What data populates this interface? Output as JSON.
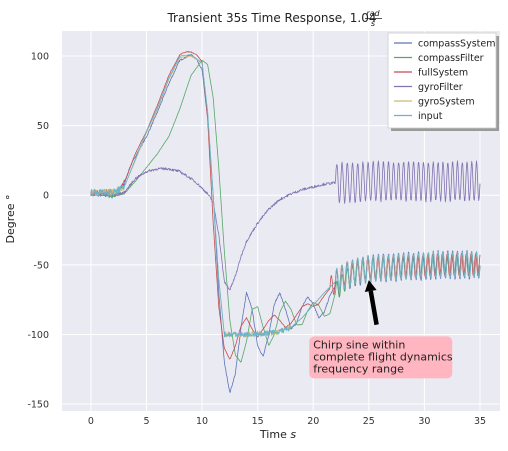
{
  "chart_data": {
    "type": "line",
    "title": "Transient 35s Time Response, 1.04 rad/s",
    "title_text": "Transient 35s Time Response, 1.04 ",
    "title_frac_num": "rad",
    "title_frac_den": "s",
    "xlabel_text": "Time ",
    "xlabel_unit": "s",
    "ylabel": "Degree °",
    "xlim": [
      -2.6,
      36.8
    ],
    "ylim": [
      -155,
      118
    ],
    "xticks": [
      0,
      5,
      10,
      15,
      20,
      25,
      30,
      35
    ],
    "yticks": [
      -150,
      -100,
      -50,
      0,
      50,
      100
    ],
    "grid": true,
    "legend_position": "top-right",
    "series": [
      {
        "name": "compassSystem",
        "color": "#5f73b8",
        "x": [
          0,
          1,
          2,
          2.5,
          3,
          3.5,
          4,
          5,
          6,
          7,
          8,
          9,
          9.5,
          10,
          10.5,
          11,
          11.5,
          12,
          12.5,
          13,
          13.5,
          14,
          14.5,
          15,
          15.5,
          16,
          16.5,
          17,
          17.5,
          18,
          18.5,
          19,
          19.5,
          20,
          20.5,
          21,
          21.5,
          22,
          23,
          24,
          25,
          26,
          27,
          28,
          29,
          30,
          31,
          32,
          33,
          34,
          35
        ],
        "y": [
          2,
          1,
          0,
          2,
          8,
          20,
          28,
          42,
          60,
          80,
          97,
          101,
          98,
          90,
          55,
          0,
          -70,
          -120,
          -142,
          -128,
          -95,
          -70,
          -82,
          -108,
          -116,
          -100,
          -78,
          -70,
          -82,
          -96,
          -92,
          -80,
          -73,
          -78,
          -88,
          -84,
          -72,
          -65,
          -58,
          -55,
          -53,
          -52,
          -52,
          -51,
          -51,
          -51,
          -50,
          -50,
          -50,
          -50,
          -50
        ]
      },
      {
        "name": "compassFilter",
        "color": "#55a868",
        "x": [
          0,
          1,
          2,
          3,
          4,
          5,
          6,
          7,
          8,
          9,
          10,
          10.5,
          11,
          11.5,
          12,
          12.5,
          13,
          13.5,
          14,
          14.5,
          15,
          15.5,
          16,
          16.5,
          17,
          17.5,
          18,
          18.5,
          19,
          19.5,
          20,
          20.5,
          21,
          21.5,
          22,
          23,
          24,
          25,
          26,
          27,
          28,
          29,
          30,
          31,
          32,
          33,
          34,
          35
        ],
        "y": [
          0,
          0,
          -1,
          1,
          10,
          20,
          30,
          42,
          62,
          86,
          97,
          94,
          70,
          20,
          -40,
          -90,
          -115,
          -120,
          -105,
          -82,
          -80,
          -95,
          -108,
          -100,
          -84,
          -76,
          -82,
          -93,
          -93,
          -83,
          -77,
          -79,
          -87,
          -85,
          -70,
          -60,
          -56,
          -53,
          -52,
          -52,
          -51,
          -51,
          -51,
          -50,
          -50,
          -50,
          -50,
          -50
        ]
      },
      {
        "name": "fullSystem",
        "color": "#c44e52",
        "x": [
          0,
          1,
          2,
          2.5,
          3,
          4,
          5,
          6,
          7,
          8,
          8.5,
          9,
          9.5,
          10,
          10.5,
          11,
          11.5,
          12,
          12.5,
          13,
          13.5,
          14,
          14.5,
          15,
          15.5,
          16,
          16.5,
          17,
          17.5,
          18,
          18.5,
          19,
          19.5,
          20,
          20.5,
          21,
          22,
          23,
          24,
          25,
          26,
          27,
          28,
          29,
          30,
          31,
          32,
          33,
          34,
          35
        ],
        "y": [
          2,
          2,
          2,
          3,
          9,
          30,
          46,
          65,
          86,
          101,
          103,
          103,
          101,
          96,
          55,
          -20,
          -80,
          -110,
          -118,
          -108,
          -94,
          -88,
          -96,
          -102,
          -96,
          -90,
          -86,
          -90,
          -95,
          -92,
          -86,
          -80,
          -78,
          -80,
          -78,
          -72,
          -62,
          -56,
          -54,
          -53,
          -52,
          -52,
          -51,
          -51,
          -51,
          -50,
          -50,
          -50,
          -50,
          -50
        ]
      },
      {
        "name": "gyroFilter",
        "color": "#8172b2",
        "x": [
          0,
          1,
          2,
          3,
          4,
          5,
          6,
          7,
          8,
          9,
          9.5,
          10,
          10.5,
          11,
          11.5,
          12,
          12.5,
          13,
          13.5,
          14,
          15,
          16,
          17,
          18,
          19,
          20,
          21,
          22,
          23,
          24,
          25,
          26,
          27,
          28,
          29,
          30,
          31,
          32,
          33,
          34,
          35
        ],
        "y": [
          2,
          1,
          0,
          2,
          12,
          17,
          19,
          19,
          17,
          12,
          9,
          5,
          1,
          -5,
          -28,
          -62,
          -68,
          -58,
          -44,
          -33,
          -20,
          -10,
          -3,
          1,
          4,
          6,
          8,
          9,
          9,
          9,
          10,
          10,
          10,
          10,
          10,
          10,
          10,
          10,
          10,
          10,
          10
        ]
      },
      {
        "name": "gyroSystem",
        "color": "#ccb974",
        "x": [
          0,
          1,
          2,
          3,
          4,
          5,
          6,
          7,
          8,
          9,
          10,
          10.5,
          11,
          11.5,
          12,
          13,
          14,
          15,
          16,
          17,
          18,
          19,
          20,
          21,
          22,
          23,
          24,
          25,
          26,
          27,
          28,
          29,
          30,
          31,
          32,
          33,
          34,
          35
        ],
        "y": [
          2,
          2,
          2,
          6,
          25,
          45,
          62,
          83,
          99,
          100,
          95,
          60,
          0,
          -60,
          -100,
          -100,
          -100,
          -99,
          -99,
          -98,
          -95,
          -88,
          -79,
          -70,
          -62,
          -57,
          -54,
          -53,
          -52,
          -52,
          -51,
          -51,
          -50,
          -50,
          -50,
          -50,
          -50,
          -50
        ]
      },
      {
        "name": "input",
        "color": "#64b5cd",
        "x": [
          0,
          1,
          2,
          3,
          4,
          5,
          6,
          7,
          8,
          9,
          10,
          10.5,
          11,
          11.5,
          12,
          13,
          14,
          15,
          16,
          17,
          18,
          19,
          20,
          21,
          22,
          23,
          24,
          25,
          26,
          27,
          28,
          29,
          30,
          31,
          32,
          33,
          34,
          35
        ],
        "y": [
          2,
          2,
          2,
          6,
          26,
          46,
          63,
          84,
          100,
          101,
          95,
          60,
          0,
          -60,
          -100,
          -100,
          -100,
          -100,
          -99,
          -98,
          -95,
          -88,
          -79,
          -70,
          -62,
          -57,
          -54,
          -53,
          -52,
          -52,
          -51,
          -51,
          -50,
          -50,
          -50,
          -50,
          -50,
          -50
        ]
      }
    ],
    "annotation": {
      "lines": [
        "Chirp sine within",
        "complete flight dynamics",
        "frequency range"
      ],
      "box_x": 20,
      "box_y": -105,
      "arrow_tail_x": 25.7,
      "arrow_tail_y": -93,
      "arrow_head_x": 25.0,
      "arrow_head_y": -61,
      "box_color": "#ffb6c1"
    }
  }
}
